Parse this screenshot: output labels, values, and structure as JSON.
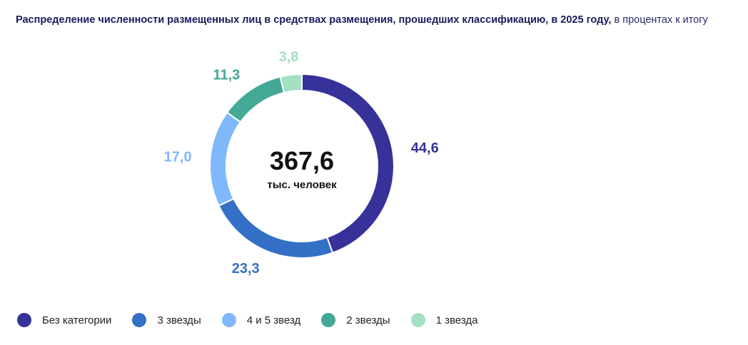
{
  "header": {
    "title_bold": "Распределение численности размещенных лиц в средствах размещения, прошедших классификацию, в 2025 году,",
    "title_unit": "в процентах к итогу"
  },
  "center": {
    "value": "367,6",
    "unit": "тыс. человек"
  },
  "chart_data": {
    "type": "pie",
    "donut": true,
    "title": "Распределение численности размещенных лиц в средствах размещения, прошедших классификацию, в 2025 году, в процентах к итогу",
    "total": 367.6,
    "total_unit": "тыс. человек",
    "slices": [
      {
        "name": "Без категории",
        "value": 44.6,
        "label": "44,6",
        "color": "#37319a"
      },
      {
        "name": "3 звезды",
        "value": 23.3,
        "label": "23,3",
        "color": "#3370c6"
      },
      {
        "name": "4 и 5 звезд",
        "value": 17.0,
        "label": "17,0",
        "color": "#80b9fb"
      },
      {
        "name": "2 звезды",
        "value": 11.3,
        "label": "11,3",
        "color": "#41a995"
      },
      {
        "name": "1 звезда",
        "value": 3.8,
        "label": "3,8",
        "color": "#a4e0c2"
      }
    ],
    "legend_position": "bottom-left"
  }
}
